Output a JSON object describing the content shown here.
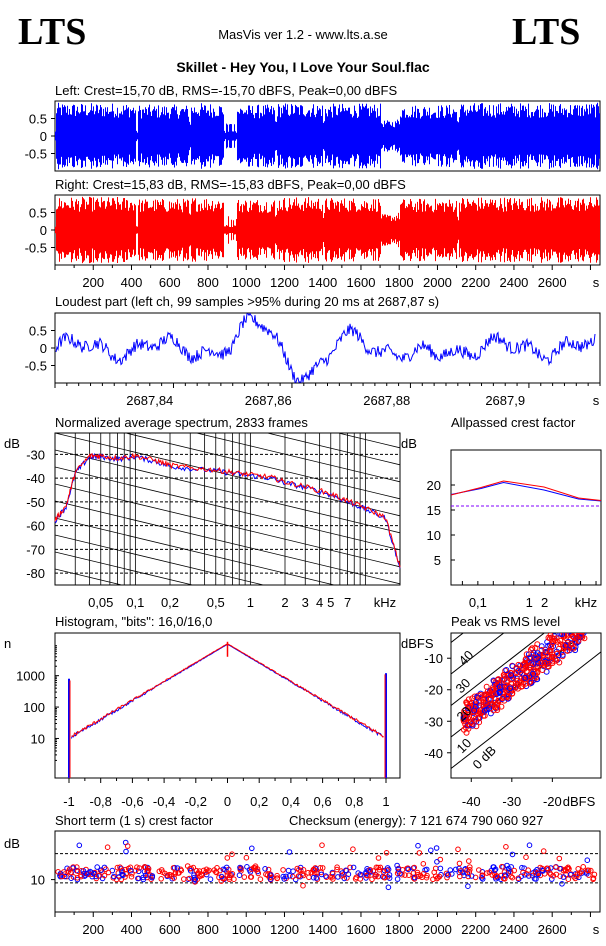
{
  "header": {
    "logo_left": "LTS",
    "logo_right": "LTS",
    "version": "MasVis ver 1.2 - www.lts.a.se",
    "file_title": "Skillet - Hey You, I Love Your Soul.flac"
  },
  "colors": {
    "left": "#0000ff",
    "right": "#ff0000",
    "grid": "#000000"
  },
  "time_axis": {
    "ticks": [
      "200",
      "400",
      "600",
      "800",
      "1000",
      "1200",
      "1400",
      "1600",
      "1800",
      "2000",
      "2200",
      "2400",
      "2600"
    ],
    "unit": "s",
    "range_s": [
      0,
      2850
    ]
  },
  "chart_data": [
    {
      "id": "left_waveform",
      "type": "area",
      "title": "Left: Crest=15,70 dB, RMS=-15,70 dBFS, Peak=0,00 dBFS",
      "ytick_labels": [
        "0.5",
        "0",
        "-0.5"
      ],
      "ylim": [
        -1,
        1
      ],
      "envelope_segments_s": [
        [
          0,
          420,
          0.95
        ],
        [
          430,
          700,
          0.9
        ],
        [
          710,
          880,
          0.95
        ],
        [
          950,
          1150,
          0.9
        ],
        [
          1160,
          1400,
          0.95
        ],
        [
          1410,
          1700,
          0.93
        ],
        [
          1710,
          1780,
          0.45
        ],
        [
          1800,
          2100,
          0.9
        ],
        [
          2110,
          2850,
          0.95
        ]
      ]
    },
    {
      "id": "right_waveform",
      "type": "area",
      "title": "Right: Crest=15,83 dB, RMS=-15,83 dBFS, Peak=0,00 dBFS",
      "ytick_labels": [
        "0.5",
        "0",
        "-0.5"
      ],
      "ylim": [
        -1,
        1
      ]
    },
    {
      "id": "loudest_part",
      "type": "line",
      "title": "Loudest part (left  ch, 99 samples >95% during 20 ms at 2687,87 s)",
      "ytick_labels": [
        "0.5",
        "0",
        "-0.5"
      ],
      "ylim": [
        -1,
        1
      ],
      "xtick_labels": [
        "2687,84",
        "2687,86",
        "2687,88",
        "2687,9"
      ],
      "x_range": [
        2687.824,
        2687.916
      ]
    },
    {
      "id": "spectrum",
      "type": "line",
      "title": "Normalized average spectrum, 2833 frames",
      "ylabel": "dB",
      "ytick_labels": [
        "-30",
        "-40",
        "-50",
        "-60",
        "-70",
        "-80"
      ],
      "xtick_labels": [
        "0,05",
        "0,1",
        "0,2",
        "0,5",
        "1",
        "2",
        "3",
        "4",
        "5",
        "7",
        "kHz"
      ],
      "x_khz": [
        0.02,
        0.025,
        0.03,
        0.04,
        0.05,
        0.07,
        0.1,
        0.15,
        0.2,
        0.3,
        0.5,
        0.7,
        1,
        1.5,
        2,
        3,
        5,
        7,
        10,
        15,
        20
      ],
      "y_db": [
        -58,
        -52,
        -38,
        -31,
        -31,
        -32,
        -31,
        -33,
        -35,
        -36,
        -37,
        -38,
        -39,
        -40,
        -42,
        -44,
        -47,
        -50,
        -53,
        -57,
        -78
      ]
    },
    {
      "id": "allpassed_crest",
      "type": "line",
      "title": "Allpassed crest factor",
      "ylabel": "dB",
      "ytick_labels": [
        "20",
        "15",
        "10",
        "5"
      ],
      "xtick_labels": [
        "0,1",
        "1",
        "2",
        "kHz"
      ],
      "reference_db": 15.8,
      "series": [
        {
          "name": "left",
          "values": [
            18.1,
            19.3,
            20.5,
            19.0,
            17.2,
            16.8
          ]
        },
        {
          "name": "right",
          "values": [
            18.0,
            19.5,
            20.8,
            19.6,
            17.4,
            16.9
          ]
        }
      ]
    },
    {
      "id": "histogram",
      "type": "line",
      "title": "Histogram, \"bits\": 16,0/16,0",
      "ylabel": "n",
      "ytick_labels": [
        "1000",
        "100",
        "10"
      ],
      "xtick_labels": [
        "-1",
        "-0,8",
        "-0,6",
        "-0,4",
        "-0,2",
        "0",
        "0,2",
        "0,4",
        "0,6",
        "0,8",
        "1"
      ]
    },
    {
      "id": "peak_vs_rms",
      "type": "scatter",
      "title": "Peak vs RMS level",
      "ylabel": "dBFS",
      "ytick_labels": [
        "-10",
        "-20",
        "-30",
        "-40"
      ],
      "xtick_labels": [
        "-40",
        "-30",
        "-20",
        "dBFS"
      ],
      "diagonal_labels": [
        "40",
        "30",
        "20",
        "10",
        "0 dB"
      ]
    },
    {
      "id": "short_term_crest",
      "type": "scatter",
      "title": "Short term (1 s) crest factor",
      "checksum": "Checksum (energy):  7 121 674 790 060 927",
      "ylabel": "dB",
      "ytick_labels": [
        "10"
      ]
    }
  ]
}
